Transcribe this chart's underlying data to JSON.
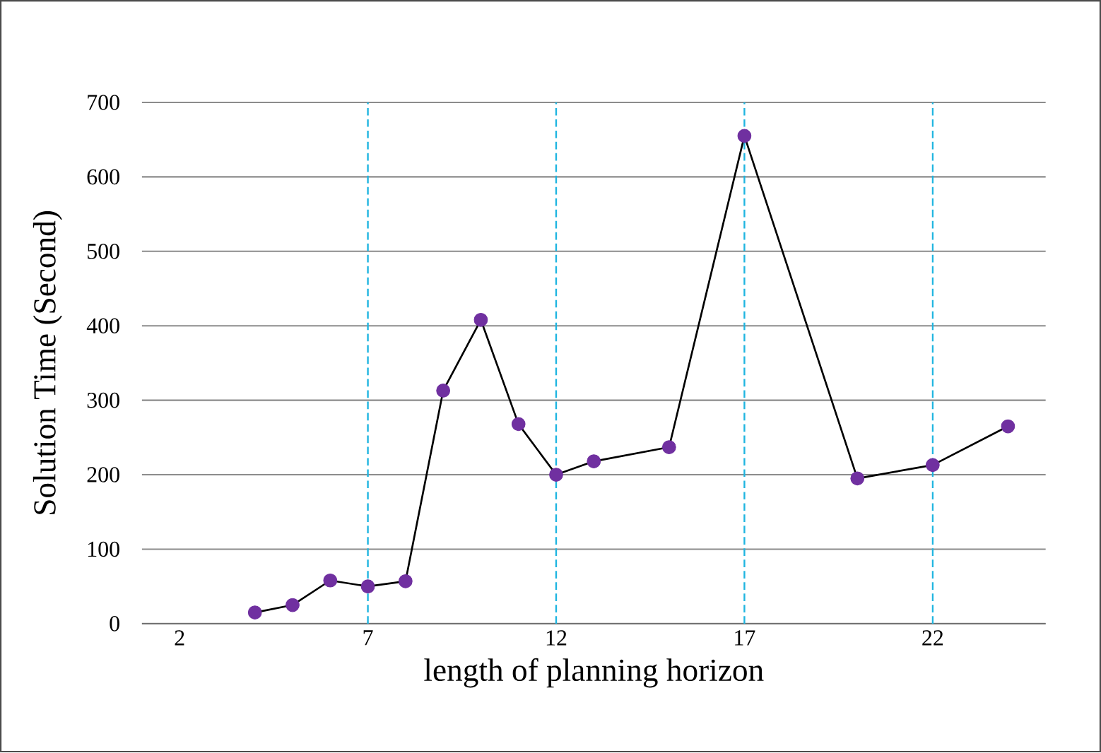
{
  "chart_data": {
    "type": "line",
    "xlabel": "length of planning horizon",
    "ylabel": "Solution Time (Second)",
    "x": [
      4,
      5,
      6,
      7,
      8,
      9,
      10,
      11,
      12,
      13,
      15,
      17,
      20,
      22,
      24
    ],
    "series": [
      {
        "color": "#000000",
        "values": [
          15,
          25,
          58,
          50,
          57,
          313,
          408,
          268,
          200,
          218,
          237,
          655,
          195,
          213,
          265
        ],
        "colors": [
          "#7030a0",
          "#7030a0",
          "#7030a0",
          "#7030a0",
          "#7030a0",
          "#7030a0",
          "#7030a0",
          "#7030a0",
          "#7030a0",
          "#7030a0",
          "#7030a0",
          "#7030a0",
          "#7030a0",
          "#7030a0",
          "#7030a0"
        ]
      }
    ],
    "marker": "circle",
    "xlim": [
      1,
      25
    ],
    "xticks": [
      2,
      7,
      12,
      17,
      22
    ],
    "ylim": [
      0,
      700
    ],
    "yticks": [
      0,
      100,
      200,
      300,
      400,
      500,
      600,
      700
    ],
    "grid": "y",
    "ref_lines": [
      {
        "axis": "x",
        "value": 7,
        "color": "#1fb5e0",
        "line_style": "dashed"
      },
      {
        "axis": "x",
        "value": 12,
        "color": "#1fb5e0",
        "line_style": "dashed"
      },
      {
        "axis": "x",
        "value": 17,
        "color": "#1fb5e0",
        "line_style": "dashed"
      },
      {
        "axis": "x",
        "value": 22,
        "color": "#1fb5e0",
        "line_style": "dashed"
      }
    ]
  }
}
